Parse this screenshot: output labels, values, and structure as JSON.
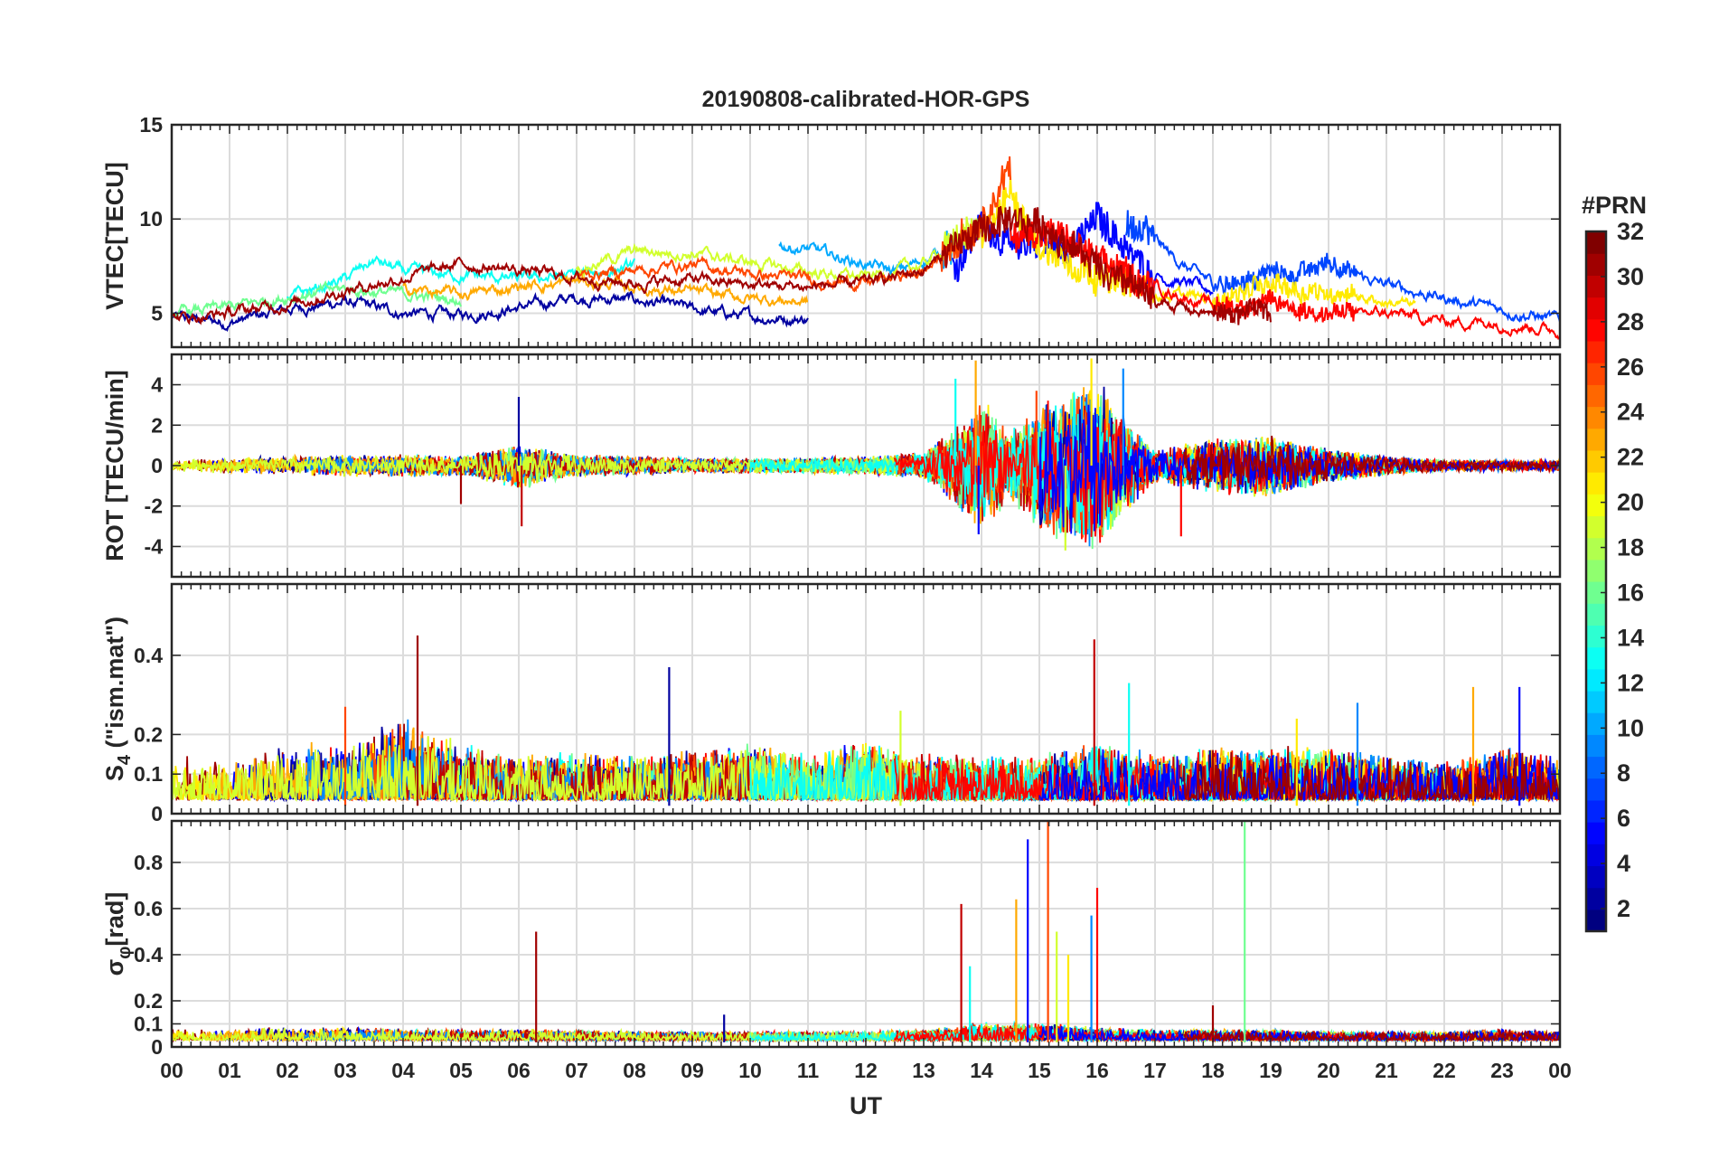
{
  "chart_data": {
    "type": "line",
    "title": "20190808-calibrated-HOR-GPS",
    "xlabel": "UT",
    "x_ticks": [
      "00",
      "01",
      "02",
      "03",
      "04",
      "05",
      "06",
      "07",
      "08",
      "09",
      "10",
      "11",
      "12",
      "13",
      "14",
      "15",
      "16",
      "17",
      "18",
      "19",
      "20",
      "21",
      "22",
      "23",
      "00"
    ],
    "xlim": [
      0,
      24
    ],
    "colorbar": {
      "title": "#PRN",
      "range": [
        1,
        32
      ],
      "tick_labels": [
        "2",
        "4",
        "6",
        "8",
        "10",
        "12",
        "14",
        "16",
        "18",
        "20",
        "22",
        "24",
        "26",
        "28",
        "30",
        "32"
      ],
      "tick_values": [
        2,
        4,
        6,
        8,
        10,
        12,
        14,
        16,
        18,
        20,
        22,
        24,
        26,
        28,
        30,
        32
      ]
    },
    "panels": [
      {
        "id": "vtec",
        "ylabel": "VTEC[TECU]",
        "ylim": [
          3.2,
          15
        ],
        "y_ticks": [
          5,
          10,
          15
        ],
        "y_tick_labels": [
          "5",
          "10",
          "15"
        ],
        "series": [
          {
            "prn": 2,
            "x": [
              0,
              1,
              2,
              3,
              4,
              5,
              6,
              7,
              8,
              9,
              10,
              11
            ],
            "y": [
              4.8,
              4.5,
              5.2,
              5.6,
              5.0,
              4.9,
              5.3,
              5.8,
              5.7,
              5.2,
              4.8,
              4.7
            ]
          },
          {
            "prn": 5,
            "x": [
              13.5,
              14,
              14.5,
              15,
              15.5,
              16,
              16.5,
              17,
              17.5,
              18
            ],
            "y": [
              7.5,
              9.8,
              8.5,
              8.8,
              8.2,
              10.2,
              8.5,
              7.0,
              6.6,
              6.2
            ]
          },
          {
            "prn": 7,
            "x": [
              16.5,
              17,
              17.5,
              18,
              18.5,
              19,
              19.5,
              20,
              20.5,
              21,
              22,
              23,
              24
            ],
            "y": [
              9.8,
              8.8,
              7.5,
              6.6,
              6.8,
              7.2,
              7.1,
              7.8,
              6.9,
              6.5,
              5.8,
              5.2,
              4.6
            ]
          },
          {
            "prn": 10,
            "x": [
              10.5,
              11,
              11.5,
              12,
              12.5,
              13,
              13.5
            ],
            "y": [
              8.6,
              8.4,
              8.0,
              7.6,
              7.2,
              7.8,
              8.5
            ]
          },
          {
            "prn": 13,
            "x": [
              2,
              3,
              3.5,
              4,
              5,
              6,
              7,
              8
            ],
            "y": [
              5.8,
              6.8,
              7.8,
              7.2,
              7.0,
              6.8,
              7.0,
              7.5
            ]
          },
          {
            "prn": 16,
            "x": [
              0,
              1,
              2,
              3,
              4,
              5
            ],
            "y": [
              5.0,
              5.3,
              5.9,
              6.3,
              6.0,
              5.7
            ]
          },
          {
            "prn": 19,
            "x": [
              7,
              8,
              9,
              10,
              11,
              12,
              13,
              13.5,
              14
            ],
            "y": [
              7.3,
              8.3,
              8.2,
              7.7,
              7.2,
              6.9,
              7.6,
              8.8,
              9.6
            ]
          },
          {
            "prn": 21,
            "x": [
              14,
              14.5,
              15,
              15.5,
              16,
              16.5,
              17,
              17.5,
              18,
              18.5,
              19,
              19.5,
              20,
              20.5,
              21,
              21.5
            ],
            "y": [
              9.0,
              11.4,
              8.5,
              7.8,
              7.1,
              6.5,
              6.1,
              5.9,
              5.8,
              6.1,
              6.7,
              6.3,
              6.1,
              5.9,
              5.6,
              5.4
            ]
          },
          {
            "prn": 23,
            "x": [
              4,
              5,
              6,
              7,
              8,
              9,
              10,
              11
            ],
            "y": [
              6.3,
              6.0,
              6.4,
              6.7,
              6.4,
              6.1,
              5.8,
              5.6
            ]
          },
          {
            "prn": 26,
            "x": [
              7,
              8,
              9,
              10,
              11,
              12,
              13,
              14,
              14.5
            ],
            "y": [
              7.0,
              7.3,
              7.6,
              7.1,
              6.8,
              6.6,
              7.2,
              9.8,
              12.6
            ]
          },
          {
            "prn": 28,
            "x": [
              14.5,
              15,
              16,
              17,
              18,
              19,
              20,
              21,
              22,
              23,
              24
            ],
            "y": [
              8.9,
              9.5,
              7.8,
              6.4,
              5.4,
              5.5,
              5.0,
              5.0,
              4.6,
              4.5,
              4.1
            ]
          },
          {
            "prn": 31,
            "x": [
              0,
              1,
              2,
              3,
              4,
              5,
              6,
              7,
              8,
              9,
              10,
              11,
              12,
              13,
              14,
              15,
              16,
              17,
              18,
              19
            ],
            "y": [
              4.7,
              5.0,
              5.5,
              6.2,
              6.9,
              7.6,
              7.3,
              6.9,
              6.6,
              6.8,
              6.5,
              6.4,
              6.6,
              7.3,
              9.5,
              9.8,
              7.6,
              5.7,
              4.9,
              5.1
            ]
          }
        ]
      },
      {
        "id": "rot",
        "ylabel": "ROT [TECU/min]",
        "ylim": [
          -5.5,
          5.5
        ],
        "y_ticks": [
          -4,
          -2,
          0,
          2,
          4
        ],
        "y_tick_labels": [
          "-4",
          "-2",
          "0",
          "2",
          "4"
        ],
        "activity": {
          "x": [
            0,
            1,
            2,
            3,
            4,
            5,
            6,
            7,
            8,
            9,
            10,
            11,
            12,
            13,
            13.5,
            14,
            14.5,
            15,
            15.5,
            16,
            16.5,
            17,
            18,
            19,
            20,
            21,
            22,
            23,
            24
          ],
          "amplitude": [
            0.3,
            0.4,
            0.5,
            0.6,
            0.6,
            0.5,
            1.2,
            0.6,
            0.5,
            0.4,
            0.4,
            0.4,
            0.5,
            0.7,
            2.0,
            3.5,
            1.8,
            3.5,
            4.0,
            4.5,
            2.5,
            0.9,
            1.4,
            1.6,
            0.9,
            0.5,
            0.3,
            0.3,
            0.3
          ]
        },
        "spikes": [
          {
            "x": 5.0,
            "y": -1.9
          },
          {
            "x": 6.0,
            "y": 3.4
          },
          {
            "x": 6.05,
            "y": -3.0
          },
          {
            "x": 13.55,
            "y": 4.3
          },
          {
            "x": 13.9,
            "y": 5.2
          },
          {
            "x": 13.95,
            "y": -3.4
          },
          {
            "x": 14.95,
            "y": 3.7
          },
          {
            "x": 15.45,
            "y": -4.2
          },
          {
            "x": 15.9,
            "y": 5.3
          },
          {
            "x": 16.45,
            "y": 4.8
          },
          {
            "x": 17.45,
            "y": -3.5
          }
        ]
      },
      {
        "id": "s4",
        "ylabel": "S4 (\"ism.mat\")",
        "ylabel_base": "S",
        "ylabel_sub": "4",
        "ylabel_rest": " (\"ism.mat\")",
        "ylim": [
          0,
          0.58
        ],
        "y_ticks": [
          0,
          0.1,
          0.2,
          0.4
        ],
        "y_tick_labels": [
          "0",
          "0.1",
          "0.2",
          "0.4"
        ],
        "activity": {
          "x": [
            0,
            1,
            2,
            3,
            4,
            5,
            6,
            7,
            8,
            9,
            10,
            11,
            12,
            13,
            14,
            15,
            16,
            17,
            18,
            19,
            20,
            21,
            22,
            23,
            24
          ],
          "amplitude": [
            0.12,
            0.1,
            0.15,
            0.15,
            0.22,
            0.15,
            0.12,
            0.13,
            0.12,
            0.13,
            0.15,
            0.12,
            0.16,
            0.12,
            0.12,
            0.12,
            0.16,
            0.12,
            0.14,
            0.14,
            0.14,
            0.12,
            0.1,
            0.14,
            0.12
          ]
        },
        "spikes": [
          {
            "x": 4.25,
            "y": 0.45
          },
          {
            "x": 8.6,
            "y": 0.37
          },
          {
            "x": 15.95,
            "y": 0.44
          },
          {
            "x": 16.55,
            "y": 0.33
          },
          {
            "x": 22.5,
            "y": 0.32
          },
          {
            "x": 23.3,
            "y": 0.32
          },
          {
            "x": 3.0,
            "y": 0.27
          },
          {
            "x": 12.6,
            "y": 0.26
          },
          {
            "x": 19.45,
            "y": 0.24
          },
          {
            "x": 20.5,
            "y": 0.28
          }
        ]
      },
      {
        "id": "sigma",
        "ylabel": "σφ[rad]",
        "ylabel_base": "σ",
        "ylabel_sub": "φ",
        "ylabel_rest": "[rad]",
        "ylim": [
          0,
          0.98
        ],
        "y_ticks": [
          0,
          0.1,
          0.2,
          0.4,
          0.6,
          0.8
        ],
        "y_tick_labels": [
          "0",
          "0.1",
          "0.2",
          "0.4",
          "0.6",
          "0.8"
        ],
        "activity": {
          "x": [
            0,
            1,
            2,
            3,
            4,
            5,
            6,
            7,
            8,
            9,
            10,
            11,
            12,
            13,
            14,
            15,
            16,
            17,
            18,
            19,
            20,
            21,
            22,
            23,
            24
          ],
          "amplitude": [
            0.05,
            0.05,
            0.06,
            0.06,
            0.05,
            0.05,
            0.05,
            0.05,
            0.04,
            0.04,
            0.04,
            0.04,
            0.04,
            0.05,
            0.08,
            0.08,
            0.06,
            0.05,
            0.05,
            0.05,
            0.04,
            0.04,
            0.04,
            0.05,
            0.04
          ]
        },
        "spikes": [
          {
            "x": 6.3,
            "y": 0.5
          },
          {
            "x": 9.55,
            "y": 0.14
          },
          {
            "x": 13.65,
            "y": 0.62
          },
          {
            "x": 13.8,
            "y": 0.35
          },
          {
            "x": 14.6,
            "y": 0.64
          },
          {
            "x": 14.8,
            "y": 0.9
          },
          {
            "x": 15.15,
            "y": 0.98
          },
          {
            "x": 15.3,
            "y": 0.5
          },
          {
            "x": 15.5,
            "y": 0.4
          },
          {
            "x": 15.9,
            "y": 0.57
          },
          {
            "x": 16.0,
            "y": 0.69
          },
          {
            "x": 18.55,
            "y": 0.98
          },
          {
            "x": 18.0,
            "y": 0.18
          }
        ]
      }
    ]
  }
}
